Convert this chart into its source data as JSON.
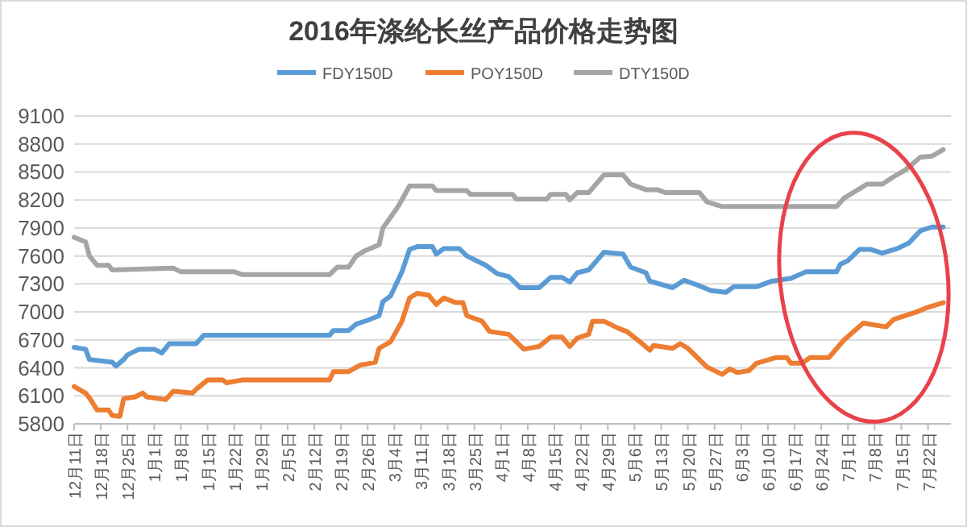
{
  "chart_data": {
    "type": "line",
    "title": "2016年涤纶长丝产品价格走势图",
    "xlim": [
      "2015-12-11",
      "2016-07-28"
    ],
    "xticks": [
      {
        "value": "2015-12-11",
        "label": "12月11日"
      },
      {
        "value": "2015-12-18",
        "label": "12月18日"
      },
      {
        "value": "2015-12-25",
        "label": "12月25日"
      },
      {
        "value": "2016-01-01",
        "label": "1月1日"
      },
      {
        "value": "2016-01-08",
        "label": "1月8日"
      },
      {
        "value": "2016-01-15",
        "label": "1月15日"
      },
      {
        "value": "2016-01-22",
        "label": "1月22日"
      },
      {
        "value": "2016-01-29",
        "label": "1月29日"
      },
      {
        "value": "2016-02-05",
        "label": "2月5日"
      },
      {
        "value": "2016-02-12",
        "label": "2月12日"
      },
      {
        "value": "2016-02-19",
        "label": "2月19日"
      },
      {
        "value": "2016-02-26",
        "label": "2月26日"
      },
      {
        "value": "2016-03-04",
        "label": "3月4日"
      },
      {
        "value": "2016-03-11",
        "label": "3月11日"
      },
      {
        "value": "2016-03-18",
        "label": "3月18日"
      },
      {
        "value": "2016-03-25",
        "label": "3月25日"
      },
      {
        "value": "2016-04-01",
        "label": "4月1日"
      },
      {
        "value": "2016-04-08",
        "label": "4月8日"
      },
      {
        "value": "2016-04-15",
        "label": "4月15日"
      },
      {
        "value": "2016-04-22",
        "label": "4月22日"
      },
      {
        "value": "2016-04-29",
        "label": "4月29日"
      },
      {
        "value": "2016-05-06",
        "label": "5月6日"
      },
      {
        "value": "2016-05-13",
        "label": "5月13日"
      },
      {
        "value": "2016-05-20",
        "label": "5月20日"
      },
      {
        "value": "2016-05-27",
        "label": "5月27日"
      },
      {
        "value": "2016-06-03",
        "label": "6月3日"
      },
      {
        "value": "2016-06-10",
        "label": "6月10日"
      },
      {
        "value": "2016-06-17",
        "label": "6月17日"
      },
      {
        "value": "2016-06-24",
        "label": "6月24日"
      },
      {
        "value": "2016-07-01",
        "label": "7月1日"
      },
      {
        "value": "2016-07-08",
        "label": "7月8日"
      },
      {
        "value": "2016-07-15",
        "label": "7月15日"
      },
      {
        "value": "2016-07-22",
        "label": "7月22日"
      }
    ],
    "ylim": [
      5800,
      9100
    ],
    "yticks": [
      5800,
      6100,
      6400,
      6700,
      7000,
      7300,
      7600,
      7900,
      8200,
      8500,
      8800,
      9100
    ],
    "grid": "y",
    "legend": "top",
    "marker": "none",
    "line_style": "solid",
    "series": [
      {
        "name": "FDY150D",
        "color": "#5b9bd5",
        "x": [
          "2015-12-11",
          "2015-12-14",
          "2015-12-15",
          "2015-12-21",
          "2015-12-22",
          "2015-12-24",
          "2015-12-25",
          "2015-12-28",
          "2016-01-01",
          "2016-01-03",
          "2016-01-05",
          "2016-01-12",
          "2016-01-14",
          "2016-02-16",
          "2016-02-17",
          "2016-02-21",
          "2016-02-23",
          "2016-02-26",
          "2016-02-29",
          "2016-03-01",
          "2016-03-03",
          "2016-03-06",
          "2016-03-08",
          "2016-03-10",
          "2016-03-14",
          "2016-03-15",
          "2016-03-17",
          "2016-03-21",
          "2016-03-23",
          "2016-03-28",
          "2016-03-31",
          "2016-04-03",
          "2016-04-06",
          "2016-04-11",
          "2016-04-14",
          "2016-04-17",
          "2016-04-19",
          "2016-04-21",
          "2016-04-24",
          "2016-04-28",
          "2016-05-03",
          "2016-05-05",
          "2016-05-09",
          "2016-05-10",
          "2016-05-16",
          "2016-05-19",
          "2016-05-23",
          "2016-05-26",
          "2016-05-30",
          "2016-06-01",
          "2016-06-07",
          "2016-06-11",
          "2016-06-16",
          "2016-06-20",
          "2016-06-28",
          "2016-06-29",
          "2016-07-01",
          "2016-07-04",
          "2016-07-07",
          "2016-07-10",
          "2016-07-14",
          "2016-07-17",
          "2016-07-20",
          "2016-07-23",
          "2016-07-26"
        ],
        "values": [
          6620,
          6600,
          6490,
          6460,
          6420,
          6490,
          6540,
          6600,
          6600,
          6560,
          6660,
          6660,
          6750,
          6750,
          6800,
          6800,
          6870,
          6910,
          6960,
          7110,
          7170,
          7430,
          7670,
          7700,
          7700,
          7620,
          7680,
          7680,
          7600,
          7500,
          7410,
          7380,
          7260,
          7260,
          7370,
          7370,
          7320,
          7420,
          7450,
          7640,
          7620,
          7480,
          7420,
          7330,
          7260,
          7340,
          7280,
          7230,
          7210,
          7270,
          7270,
          7330,
          7360,
          7430,
          7430,
          7510,
          7550,
          7670,
          7670,
          7630,
          7680,
          7740,
          7870,
          7910,
          7910
        ]
      },
      {
        "name": "POY150D",
        "color": "#ed7d31",
        "x": [
          "2015-12-11",
          "2015-12-14",
          "2015-12-15",
          "2015-12-17",
          "2015-12-20",
          "2015-12-21",
          "2015-12-23",
          "2015-12-24",
          "2015-12-27",
          "2015-12-29",
          "2015-12-30",
          "2016-01-04",
          "2016-01-06",
          "2016-01-11",
          "2016-01-12",
          "2016-01-15",
          "2016-01-19",
          "2016-01-20",
          "2016-01-24",
          "2016-02-16",
          "2016-02-17",
          "2016-02-21",
          "2016-02-24",
          "2016-02-28",
          "2016-02-29",
          "2016-03-03",
          "2016-03-06",
          "2016-03-08",
          "2016-03-10",
          "2016-03-13",
          "2016-03-15",
          "2016-03-17",
          "2016-03-20",
          "2016-03-22",
          "2016-03-23",
          "2016-03-27",
          "2016-03-29",
          "2016-04-03",
          "2016-04-07",
          "2016-04-11",
          "2016-04-14",
          "2016-04-17",
          "2016-04-19",
          "2016-04-21",
          "2016-04-24",
          "2016-04-25",
          "2016-04-28",
          "2016-05-02",
          "2016-05-04",
          "2016-05-08",
          "2016-05-10",
          "2016-05-11",
          "2016-05-16",
          "2016-05-18",
          "2016-05-20",
          "2016-05-25",
          "2016-05-29",
          "2016-05-31",
          "2016-06-02",
          "2016-06-05",
          "2016-06-07",
          "2016-06-12",
          "2016-06-15",
          "2016-06-16",
          "2016-06-19",
          "2016-06-21",
          "2016-06-26",
          "2016-06-30",
          "2016-07-05",
          "2016-07-11",
          "2016-07-13",
          "2016-07-19",
          "2016-07-22",
          "2016-07-26"
        ],
        "values": [
          6200,
          6130,
          6080,
          5950,
          5950,
          5890,
          5880,
          6070,
          6090,
          6130,
          6090,
          6060,
          6150,
          6130,
          6170,
          6270,
          6270,
          6240,
          6270,
          6270,
          6360,
          6360,
          6430,
          6460,
          6610,
          6680,
          6900,
          7150,
          7200,
          7180,
          7080,
          7150,
          7100,
          7100,
          6960,
          6900,
          6790,
          6760,
          6600,
          6630,
          6730,
          6730,
          6630,
          6720,
          6760,
          6900,
          6900,
          6820,
          6790,
          6660,
          6590,
          6640,
          6610,
          6660,
          6610,
          6410,
          6330,
          6390,
          6350,
          6370,
          6450,
          6510,
          6510,
          6450,
          6450,
          6510,
          6510,
          6700,
          6880,
          6840,
          6920,
          7000,
          7050,
          7100
        ]
      },
      {
        "name": "DTY150D",
        "color": "#a5a5a5",
        "x": [
          "2015-12-11",
          "2015-12-14",
          "2015-12-15",
          "2015-12-17",
          "2015-12-20",
          "2015-12-21",
          "2016-01-06",
          "2016-01-08",
          "2016-01-22",
          "2016-01-24",
          "2016-02-16",
          "2016-02-18",
          "2016-02-21",
          "2016-02-23",
          "2016-02-25",
          "2016-02-29",
          "2016-03-01",
          "2016-03-05",
          "2016-03-08",
          "2016-03-14",
          "2016-03-15",
          "2016-03-23",
          "2016-03-24",
          "2016-04-04",
          "2016-04-05",
          "2016-04-13",
          "2016-04-14",
          "2016-04-18",
          "2016-04-19",
          "2016-04-21",
          "2016-04-24",
          "2016-04-28",
          "2016-05-03",
          "2016-05-05",
          "2016-05-09",
          "2016-05-12",
          "2016-05-14",
          "2016-05-23",
          "2016-05-25",
          "2016-05-29",
          "2016-06-28",
          "2016-06-30",
          "2016-07-06",
          "2016-07-10",
          "2016-07-13",
          "2016-07-16",
          "2016-07-20",
          "2016-07-23",
          "2016-07-26"
        ],
        "values": [
          7800,
          7750,
          7600,
          7500,
          7500,
          7450,
          7470,
          7430,
          7430,
          7400,
          7400,
          7480,
          7480,
          7600,
          7650,
          7720,
          7900,
          8130,
          8350,
          8350,
          8300,
          8300,
          8260,
          8260,
          8210,
          8210,
          8260,
          8260,
          8200,
          8280,
          8280,
          8470,
          8470,
          8370,
          8310,
          8310,
          8280,
          8280,
          8180,
          8130,
          8130,
          8220,
          8370,
          8370,
          8450,
          8520,
          8660,
          8670,
          8740
        ]
      }
    ]
  }
}
